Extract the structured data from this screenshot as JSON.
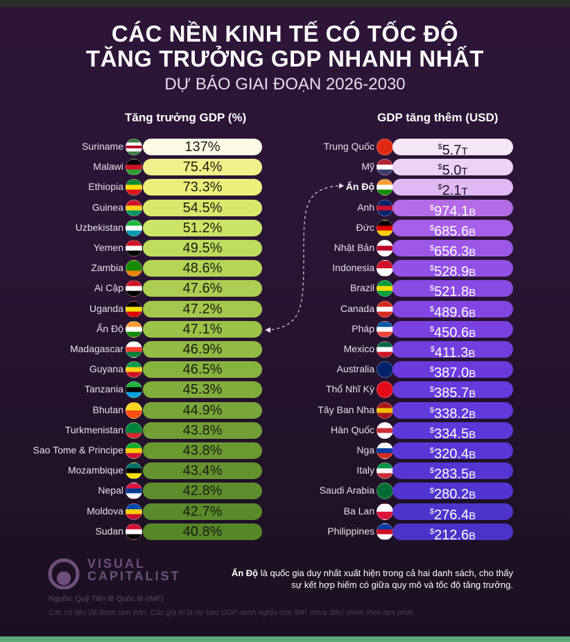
{
  "title_line1": "CÁC NỀN KINH TẾ CÓ TỐC ĐỘ",
  "title_line2": "TĂNG TRƯỞNG GDP NHANH NHẤT",
  "subtitle": "DỰ BÁO GIAI ĐOẠN 2026-2030",
  "chart_data": [
    {
      "type": "bar",
      "title": "Tăng trưởng GDP (%)",
      "unit": "%",
      "categories": [
        "Suriname",
        "Malawi",
        "Ethiopia",
        "Guinea",
        "Uzbekistan",
        "Yemen",
        "Zambia",
        "Ai Cập",
        "Uganda",
        "Ấn Độ",
        "Madagascar",
        "Guyana",
        "Tanzania",
        "Bhutan",
        "Turkmenistan",
        "Sao Tome & Principe",
        "Mozambique",
        "Nepal",
        "Moldova",
        "Sudan"
      ],
      "values": [
        137,
        75.4,
        73.3,
        54.5,
        51.2,
        49.5,
        48.6,
        47.6,
        47.2,
        47.1,
        46.9,
        46.5,
        45.3,
        44.9,
        43.8,
        43.8,
        43.4,
        42.8,
        42.7,
        40.8
      ],
      "labels": [
        "137%",
        "75.4%",
        "73.3%",
        "54.5%",
        "51.2%",
        "49.5%",
        "48.6%",
        "47.6%",
        "47.2%",
        "47.1%",
        "46.9%",
        "46.5%",
        "45.3%",
        "44.9%",
        "43.8%",
        "43.8%",
        "43.4%",
        "42.8%",
        "42.7%",
        "40.8%"
      ],
      "flags": [
        [
          "#377e3f",
          "#fff",
          "#b40a2d",
          "#fff",
          "#377e3f"
        ],
        [
          "#000",
          "#ce1126",
          "#339e35"
        ],
        [
          "#078930",
          "#fcdd09",
          "#da121a"
        ],
        [
          "#ce1126",
          "#fcd116",
          "#009460"
        ],
        [
          "#1eb53a",
          "#fff",
          "#0099b5"
        ],
        [
          "#ce1126",
          "#fff",
          "#000"
        ],
        [
          "#198a00",
          "#198a00",
          "#ef7d00"
        ],
        [
          "#ce1126",
          "#fff",
          "#000"
        ],
        [
          "#000",
          "#fcdc04",
          "#d90000"
        ],
        [
          "#ff9933",
          "#fff",
          "#138808"
        ],
        [
          "#fff",
          "#fc3d32",
          "#007e3a"
        ],
        [
          "#009e49",
          "#fcd116",
          "#ce1126"
        ],
        [
          "#1eb53a",
          "#000",
          "#00a3dd"
        ],
        [
          "#ffd520",
          "#ff4e12"
        ],
        [
          "#00843d",
          "#00843d",
          "#d22630"
        ],
        [
          "#12ad2b",
          "#ffce00",
          "#d21034"
        ],
        [
          "#007168",
          "#000",
          "#fce100"
        ],
        [
          "#dc143c",
          "#003893",
          "#fff"
        ],
        [
          "#0046ae",
          "#ffd200",
          "#cc092f"
        ],
        [
          "#d21034",
          "#fff",
          "#000"
        ]
      ],
      "colors": [
        "#fdfbe6",
        "#f2f08a",
        "#eef07c",
        "#d9e86c",
        "#cde566",
        "#bfdc5e",
        "#b6d557",
        "#acce52",
        "#a4c84d",
        "#9ac348",
        "#91bb44",
        "#87b33f",
        "#80ad3c",
        "#78a638",
        "#719f35",
        "#6a9932",
        "#64932f",
        "#5e8d2d",
        "#598a2b",
        "#558628"
      ]
    },
    {
      "type": "bar",
      "title": "GDP tăng thêm (USD)",
      "unit": "USD",
      "categories": [
        "Trung Quốc",
        "Mỹ",
        "Ấn Độ",
        "Anh",
        "Đức",
        "Nhật Bản",
        "Indonesia",
        "Brazil",
        "Canada",
        "Pháp",
        "Mexico",
        "Australia",
        "Thổ Nhĩ Kỳ",
        "Tây Ban Nha",
        "Hàn Quốc",
        "Nga",
        "Italy",
        "Saudi Arabia",
        "Ba Lan",
        "Philippines"
      ],
      "values_billion": [
        5700,
        5000,
        2100,
        974.1,
        685.6,
        656.3,
        528.9,
        521.8,
        489.6,
        450.6,
        411.3,
        387.0,
        385.7,
        338.2,
        334.5,
        320.4,
        283.5,
        280.2,
        276.4,
        212.6
      ],
      "numbers": [
        "5.7",
        "5.0",
        "2.1",
        "974.1",
        "685.6",
        "656.3",
        "528.9",
        "521.8",
        "489.6",
        "450.6",
        "411.3",
        "387.0",
        "385.7",
        "338.2",
        "334.5",
        "320.4",
        "283.5",
        "280.2",
        "276.4",
        "212.6"
      ],
      "suffixes": [
        "T",
        "T",
        "T",
        "B",
        "B",
        "B",
        "B",
        "B",
        "B",
        "B",
        "B",
        "B",
        "B",
        "B",
        "B",
        "B",
        "B",
        "B",
        "B",
        "B"
      ],
      "currency": "$",
      "flags": [
        [
          "#de2910",
          "#de2910"
        ],
        [
          "#b22234",
          "#fff",
          "#3c3b6e"
        ],
        [
          "#ff9933",
          "#fff",
          "#138808"
        ],
        [
          "#012169",
          "#c8102e",
          "#012169"
        ],
        [
          "#000",
          "#dd0000",
          "#ffce00"
        ],
        [
          "#fff",
          "#bc002d",
          "#fff"
        ],
        [
          "#ce1126",
          "#fff"
        ],
        [
          "#009c3b",
          "#ffdf00",
          "#009c3b"
        ],
        [
          "#d52b1e",
          "#fff",
          "#d52b1e"
        ],
        [
          "#0055a4",
          "#fff",
          "#ef4135"
        ],
        [
          "#006847",
          "#fff",
          "#ce1126"
        ],
        [
          "#012169",
          "#012169"
        ],
        [
          "#e30a17",
          "#e30a17"
        ],
        [
          "#aa151b",
          "#f1bf00",
          "#aa151b"
        ],
        [
          "#fff",
          "#cd2e3a",
          "#fff"
        ],
        [
          "#fff",
          "#0039a6",
          "#d52b1e"
        ],
        [
          "#009246",
          "#fff",
          "#ce2b37"
        ],
        [
          "#006c35",
          "#006c35"
        ],
        [
          "#fff",
          "#dc143c"
        ],
        [
          "#0038a8",
          "#ce1126",
          "#fff"
        ]
      ],
      "colors": [
        "#f5e6f8",
        "#ecd2f6",
        "#e0b8f2",
        "#b36be6",
        "#a65fe8",
        "#9c57e8",
        "#9250e6",
        "#8a4ae4",
        "#8245e2",
        "#7a41e0",
        "#733ede",
        "#6c3adc",
        "#673adc",
        "#6239da",
        "#5d38d8",
        "#5937d6",
        "#5536d3",
        "#5235d0",
        "#4f34cc",
        "#4c33c8"
      ],
      "dark_text_count": 3
    }
  ],
  "highlight": "Ấn Độ",
  "note_bold": "Ấn Độ",
  "note_text": " là quốc gia duy nhất xuất hiện trong cả hai danh sách, cho thấy",
  "note_line2": "sự kết hợp hiếm có giữa quy mô và tốc độ tăng trưởng.",
  "logo_line1": "VISUAL",
  "logo_line2": "CAPITALIST",
  "source": "Nguồn: Quỹ Tiền tệ Quốc tế (IMF)",
  "footnote": "Các số liệu đã được làm tròn. Các giá trị là dự báo GDP danh nghĩa của IMF, chưa điều chỉnh theo lạm phát."
}
